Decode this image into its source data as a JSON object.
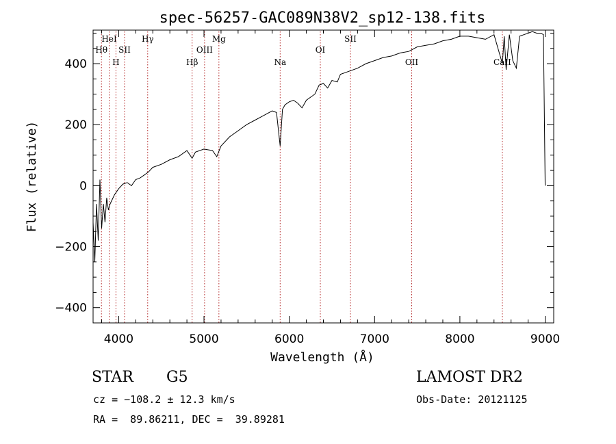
{
  "chart_data": {
    "type": "line",
    "title": "spec-56257-GAC089N38V2_sp12-138.fits",
    "xlabel": "Wavelength (Å)",
    "ylabel": "Flux (relative)",
    "xlim": [
      3700,
      9100
    ],
    "ylim": [
      -450,
      510
    ],
    "x_ticks": [
      4000,
      5000,
      6000,
      7000,
      8000,
      9000
    ],
    "y_ticks": [
      -400,
      -200,
      0,
      200,
      400
    ],
    "y_tick_labels": [
      "−400",
      "−200",
      "0",
      "200",
      "400"
    ],
    "grid": false,
    "series": [
      {
        "x": [
          3700,
          3720,
          3740,
          3760,
          3780,
          3800,
          3820,
          3840,
          3860,
          3880,
          3900,
          3950,
          4000,
          4050,
          4100,
          4150,
          4200,
          4250,
          4300,
          4350,
          4400,
          4500,
          4600,
          4700,
          4800,
          4861,
          4900,
          5000,
          5100,
          5150,
          5200,
          5300,
          5400,
          5500,
          5600,
          5700,
          5800,
          5850,
          5893,
          5920,
          5950,
          6000,
          6050,
          6100,
          6150,
          6200,
          6300,
          6350,
          6400,
          6450,
          6500,
          6563,
          6600,
          6700,
          6800,
          6900,
          7000,
          7100,
          7200,
          7300,
          7400,
          7500,
          7600,
          7700,
          7800,
          7900,
          8000,
          8100,
          8200,
          8300,
          8400,
          8498,
          8520,
          8542,
          8580,
          8620,
          8662,
          8700,
          8750,
          8800,
          8850,
          8900,
          8950,
          8980,
          9000
        ],
        "values": [
          -120,
          -250,
          -60,
          -180,
          20,
          -140,
          -60,
          -120,
          -40,
          -80,
          -60,
          -30,
          -10,
          5,
          10,
          0,
          20,
          25,
          35,
          45,
          60,
          70,
          85,
          95,
          115,
          90,
          110,
          120,
          115,
          95,
          130,
          160,
          180,
          200,
          215,
          230,
          245,
          240,
          130,
          250,
          265,
          275,
          280,
          270,
          255,
          280,
          300,
          330,
          335,
          320,
          345,
          340,
          365,
          375,
          385,
          400,
          410,
          420,
          425,
          435,
          440,
          455,
          460,
          465,
          475,
          480,
          490,
          490,
          485,
          480,
          495,
          400,
          490,
          380,
          495,
          410,
          385,
          490,
          495,
          500,
          505,
          500,
          500,
          495,
          0
        ]
      }
    ],
    "spectral_lines": [
      {
        "name": "HeI",
        "wavelength": 3889,
        "row": 0
      },
      {
        "name": "Hθ",
        "wavelength": 3798,
        "row": 1
      },
      {
        "name": "SII",
        "wavelength": 4069,
        "row": 1
      },
      {
        "name": "H",
        "wavelength": 3968,
        "row": 2
      },
      {
        "name": "Hγ",
        "wavelength": 4340,
        "row": 0
      },
      {
        "name": "Hβ",
        "wavelength": 4861,
        "row": 2
      },
      {
        "name": "OIII",
        "wavelength": 5007,
        "row": 1
      },
      {
        "name": "Mg",
        "wavelength": 5175,
        "row": 0
      },
      {
        "name": "Na",
        "wavelength": 5893,
        "row": 2
      },
      {
        "name": "OI",
        "wavelength": 6364,
        "row": 1
      },
      {
        "name": "SII",
        "wavelength": 6717,
        "row": 0
      },
      {
        "name": "OII",
        "wavelength": 7435,
        "row": 2
      },
      {
        "name": "CaII",
        "wavelength": 8498,
        "row": 2
      }
    ]
  },
  "info": {
    "object_class": "STAR",
    "subclass": "G5",
    "survey": "LAMOST DR2",
    "cz": "cz = −108.2 ± 12.3 km/s",
    "obs_date": "Obs-Date: 20121125",
    "coords": "RA =  89.86211, DEC =  39.89281"
  },
  "colors": {
    "spectrum": "#000000",
    "line_markers": "#b22222"
  }
}
